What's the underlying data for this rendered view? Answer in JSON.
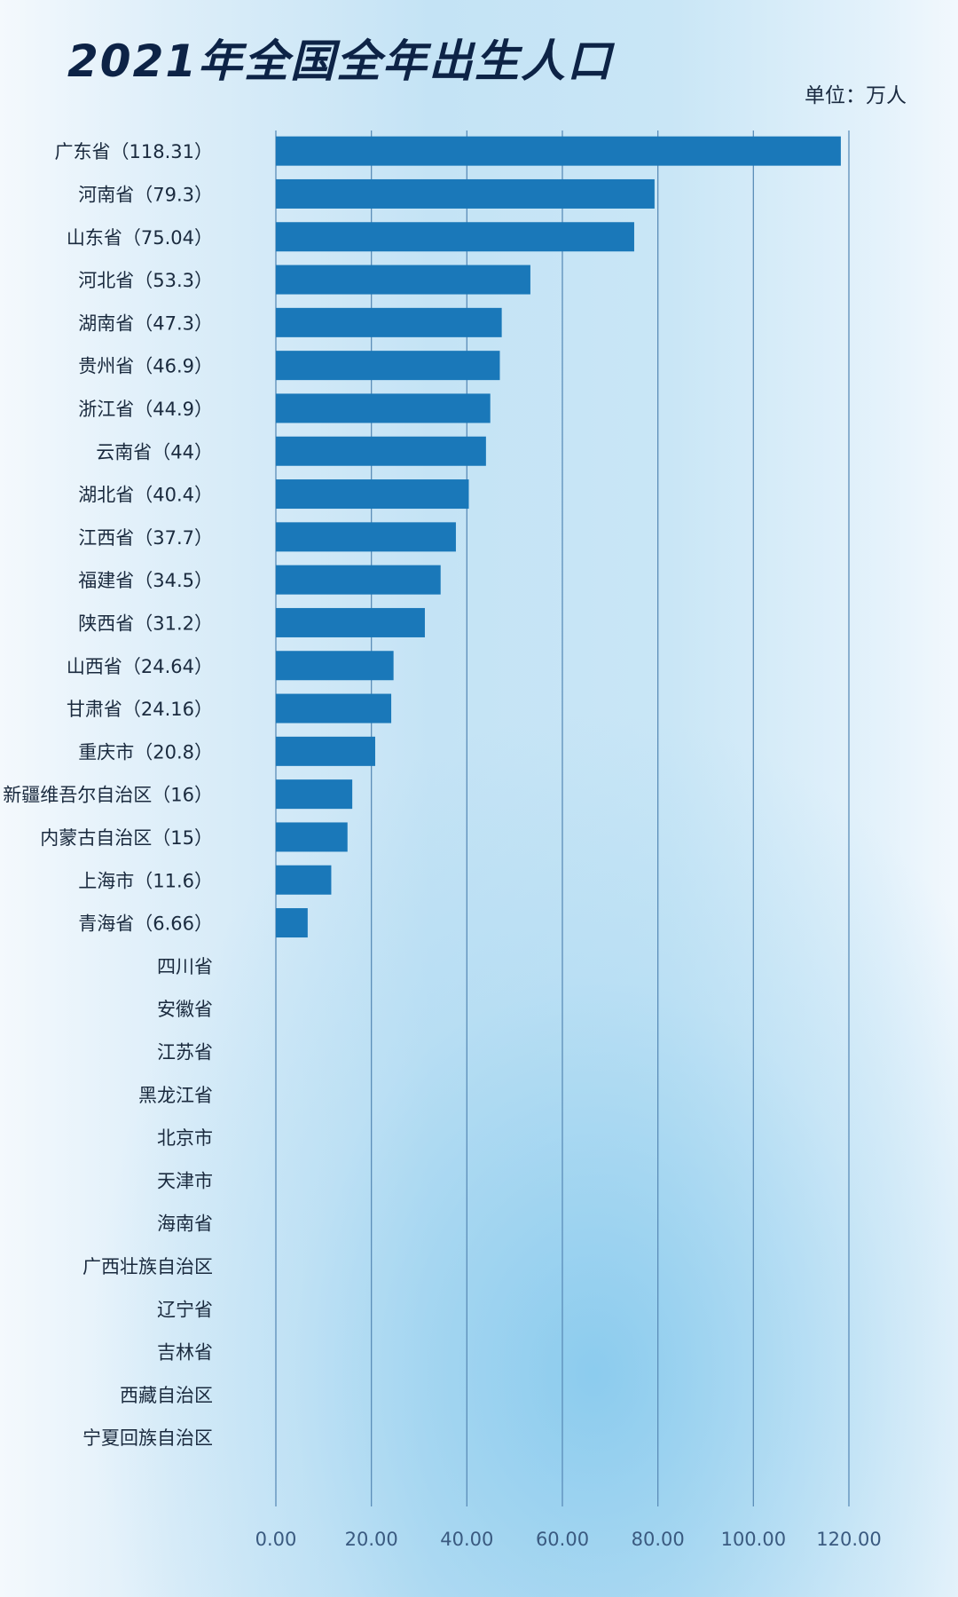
{
  "title": "2021年全国全年出生人口",
  "unit_label": "单位：万人",
  "colors": {
    "bar": "#1a78b9",
    "gridline": "#5b8db8",
    "title": "#0d2346"
  },
  "chart_data": {
    "type": "bar",
    "orientation": "horizontal",
    "title": "2021年全国全年出生人口",
    "unit": "单位：万人",
    "categories": [
      "广东省（118.31）",
      "河南省（79.3）",
      "山东省（75.04）",
      "河北省（53.3）",
      "湖南省（47.3）",
      "贵州省（46.9）",
      "浙江省（44.9）",
      "云南省（44）",
      "湖北省（40.4）",
      "江西省（37.7）",
      "福建省（34.5）",
      "陕西省（31.2）",
      "山西省（24.64）",
      "甘肃省（24.16）",
      "重庆市（20.8）",
      "新疆维吾尔自治区（16）",
      "内蒙古自治区（15）",
      "上海市（11.6）",
      "青海省（6.66）",
      "四川省",
      "安徽省",
      "江苏省",
      "黑龙江省",
      "北京市",
      "天津市",
      "海南省",
      "广西壮族自治区",
      "辽宁省",
      "吉林省",
      "西藏自治区",
      "宁夏回族自治区"
    ],
    "values": [
      118.31,
      79.3,
      75.04,
      53.3,
      47.3,
      46.9,
      44.9,
      44,
      40.4,
      37.7,
      34.5,
      31.2,
      24.64,
      24.16,
      20.8,
      16,
      15,
      11.6,
      6.66,
      null,
      null,
      null,
      null,
      null,
      null,
      null,
      null,
      null,
      null,
      null,
      null
    ],
    "xlim": [
      0,
      120
    ],
    "xticks": [
      "0.00",
      "20.00",
      "40.00",
      "60.00",
      "80.00",
      "100.00",
      "120.00"
    ],
    "grid": true,
    "legend": "none"
  }
}
